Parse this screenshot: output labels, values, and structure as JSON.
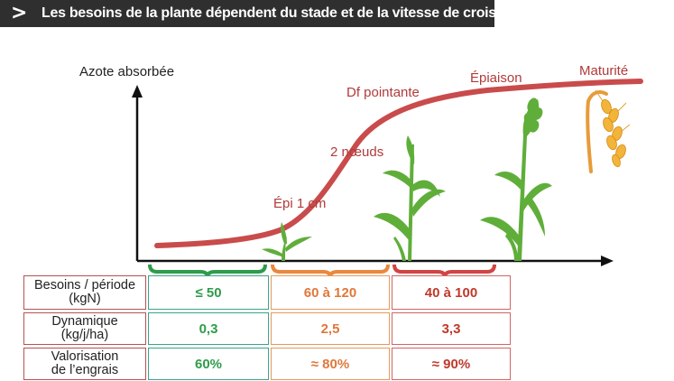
{
  "banner": {
    "chevron": ">",
    "title": "Les besoins de la plante dépendent du stade et de la vitesse de croissance"
  },
  "chart": {
    "ylabel": "Azote absorbée",
    "stages": [
      "Épi 1 cm",
      "2 nœuds",
      "Df pointante",
      "Épiaison",
      "Maturité"
    ],
    "colors": {
      "curve": "#c94b4b",
      "phase1": "#2e9c4a",
      "phase2": "#e9883e",
      "phase3": "#d04444"
    }
  },
  "table": {
    "rows": [
      {
        "label_lines": [
          "Besoins / période",
          "(kgN)"
        ],
        "values": [
          "≤ 50",
          "60 à 120",
          "40 à 100"
        ]
      },
      {
        "label_lines": [
          "Dynamique",
          "(kg/j/ha)"
        ],
        "values": [
          "0,3",
          "2,5",
          "3,3"
        ]
      },
      {
        "label_lines": [
          "Valorisation",
          "de l’engrais"
        ],
        "values": [
          "60%",
          "≈ 80%",
          "≈ 90%"
        ]
      }
    ]
  }
}
